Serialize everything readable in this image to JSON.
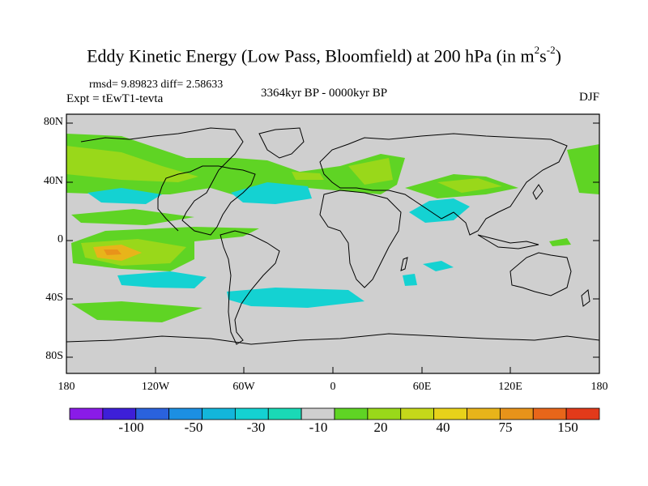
{
  "title": {
    "main": "Eddy Kinetic Energy (Low Pass, Bloomfield) at 200 hPa (in m",
    "sup1": "2",
    "mid": "s",
    "sup2": "-2",
    "end": ")"
  },
  "stats": "rmsd= 9.89823 diff= 2.58633",
  "expt": "Expt = tEwT1-tevta",
  "period": "3364kyr BP - 0000kyr BP",
  "season": "DJF",
  "axes": {
    "y_labels": [
      "80N",
      "40N",
      "0",
      "40S",
      "80S"
    ],
    "x_labels": [
      "180",
      "120W",
      "60W",
      "0",
      "60E",
      "120E",
      "180"
    ]
  },
  "colorbar": {
    "labels": [
      "-100",
      "-50",
      "-30",
      "-10",
      "20",
      "40",
      "75",
      "150"
    ],
    "colors": [
      "#8a1be8",
      "#3d1fd8",
      "#2a62dd",
      "#1c8fe2",
      "#13b6db",
      "#14d2d2",
      "#1ad9b6",
      "#cfcfcf",
      "#5fd424",
      "#99d81a",
      "#c5d81a",
      "#e8d21a",
      "#e8b41a",
      "#e8931a",
      "#e8661a",
      "#e23a1a"
    ]
  },
  "colors": {
    "background": "#cfcfcf",
    "negative": "#14d2d2",
    "positive_light": "#5fd424",
    "positive_mid": "#99d81a",
    "positive_high": "#e8b41a",
    "positive_peak": "#e8931a"
  }
}
